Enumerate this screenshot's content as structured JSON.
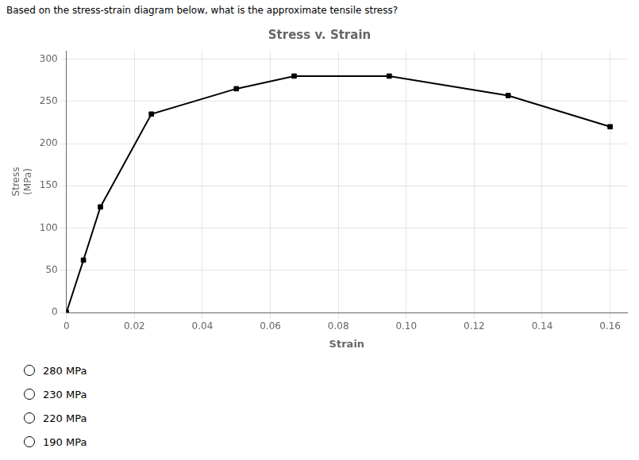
{
  "chart_data": {
    "type": "line",
    "title": "Stress v. Strain",
    "xlabel": "Strain",
    "ylabel": [
      "Stress",
      "(MPa)"
    ],
    "annotations": {
      "question": "Based on the stress-strain diagram below, what is the approximate tensile stress?",
      "choices": [
        "280 MPa",
        "230 MPa",
        "220 MPa",
        "190 MPa"
      ]
    },
    "series": [
      {
        "type": "line",
        "color": "#000000",
        "marker": "none",
        "x": [
          0,
          0.005,
          0.01,
          0.025,
          0.05,
          0.067,
          0.08,
          0.095,
          0.13,
          0.16
        ],
        "values": [
          0,
          62,
          125,
          235,
          265,
          280,
          280,
          280,
          257,
          220
        ]
      },
      {
        "type": "scatter",
        "color": "#000000",
        "marker": "square",
        "x": [
          0,
          0.005,
          0.01,
          0.025,
          0.05,
          0.067,
          0.095,
          0.13,
          0.16
        ],
        "values": [
          0,
          62,
          125,
          235,
          265,
          280,
          280,
          257,
          220
        ]
      }
    ],
    "xlim": [
      0,
      0.165
    ],
    "ylim": [
      0,
      310
    ],
    "xticks": [
      0,
      0.02,
      0.04,
      0.06,
      0.08,
      {
        "value": 0.1,
        "label": "0.10"
      },
      0.12,
      0.14,
      0.16
    ],
    "yticks": [
      0,
      50,
      100,
      150,
      200,
      250,
      300
    ],
    "grid": true
  }
}
